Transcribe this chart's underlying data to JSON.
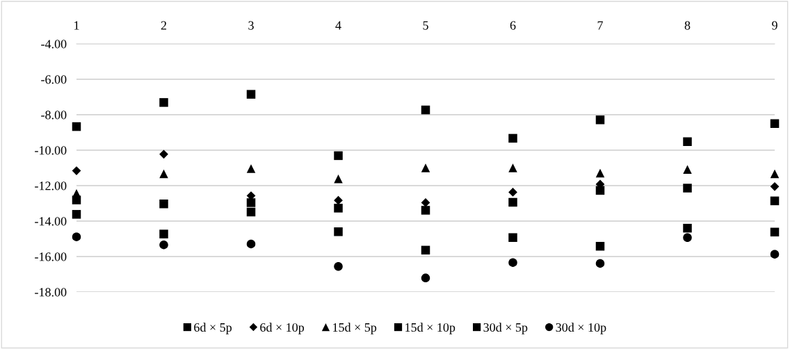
{
  "chart_data": {
    "type": "scatter",
    "categories": [
      "1",
      "2",
      "3",
      "4",
      "5",
      "6",
      "7",
      "8",
      "9"
    ],
    "ylim": [
      -18,
      -4
    ],
    "yticks": [
      {
        "value": -4,
        "label": "-4.00"
      },
      {
        "value": -6,
        "label": "-6.00"
      },
      {
        "value": -8,
        "label": "-8.00"
      },
      {
        "value": -10,
        "label": "-10.00"
      },
      {
        "value": -12,
        "label": "-12.00"
      },
      {
        "value": -14,
        "label": "-14.00"
      },
      {
        "value": -16,
        "label": "-16.00"
      },
      {
        "value": -18,
        "label": "-18.00"
      }
    ],
    "grid": "y",
    "legend": "bottom",
    "series": [
      {
        "name": "6d × 5p",
        "color": "#000000",
        "marker": "square",
        "values": [
          -8.67,
          -7.31,
          -6.85,
          -10.31,
          -7.73,
          -9.33,
          -8.29,
          -9.52,
          -8.5
        ]
      },
      {
        "name": "6d × 10p",
        "color": "#000000",
        "marker": "diamond",
        "values": [
          -11.16,
          -10.23,
          -12.57,
          -12.83,
          -12.96,
          -12.37,
          -11.92,
          null,
          -12.05
        ]
      },
      {
        "name": "15d × 5p",
        "color": "#000000",
        "marker": "triangle",
        "values": [
          -12.44,
          -11.33,
          -11.04,
          -11.62,
          -11.0,
          -11.0,
          -11.29,
          -11.09,
          -11.33
        ]
      },
      {
        "name": "15d × 10p",
        "color": "#000000",
        "marker": "square",
        "values": [
          -12.81,
          -13.03,
          -12.96,
          -13.27,
          -13.39,
          -12.94,
          -12.27,
          -12.14,
          -12.86
        ]
      },
      {
        "name": "30d × 5p",
        "color": "#000000",
        "marker": "square",
        "values": [
          -13.62,
          -14.73,
          -13.49,
          -14.6,
          -15.64,
          -14.93,
          -15.42,
          -14.4,
          -14.62
        ]
      },
      {
        "name": "30d × 10p",
        "color": "#000000",
        "marker": "circle",
        "values": [
          -14.89,
          -15.34,
          -15.29,
          -16.56,
          -17.21,
          -16.34,
          -16.39,
          -14.93,
          -15.87
        ]
      }
    ]
  }
}
